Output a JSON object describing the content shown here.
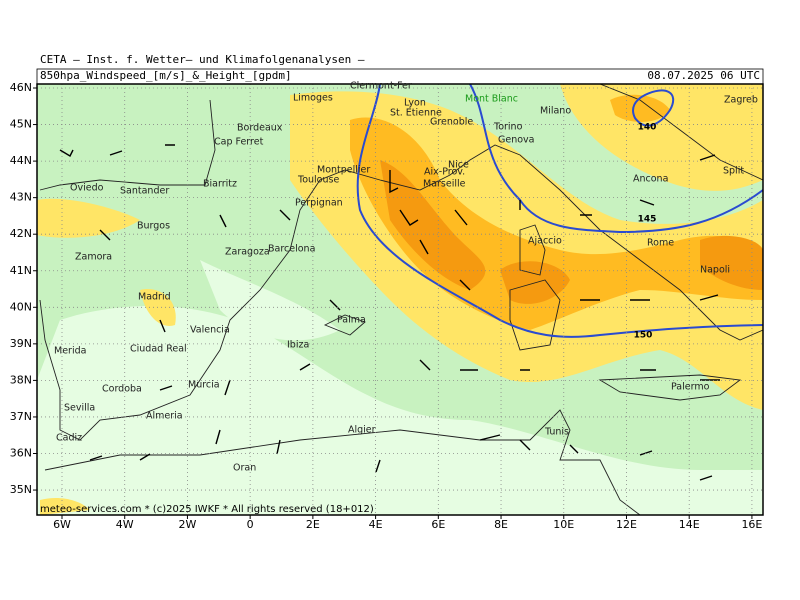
{
  "header": {
    "institute": "CETA – Inst. f. Wetter– und Klimafolgenanalysen –",
    "product": "850hpa_Windspeed_[m/s]_&_Height_[gpdm]",
    "valid_time": "08.07.2025 06 UTC"
  },
  "map": {
    "lat_ticks": [
      {
        "value": 46,
        "label": "46N"
      },
      {
        "value": 45,
        "label": "45N"
      },
      {
        "value": 44,
        "label": "44N"
      },
      {
        "value": 43,
        "label": "43N"
      },
      {
        "value": 42,
        "label": "42N"
      },
      {
        "value": 41,
        "label": "41N"
      },
      {
        "value": 40,
        "label": "40N"
      },
      {
        "value": 39,
        "label": "39N"
      },
      {
        "value": 38,
        "label": "38N"
      },
      {
        "value": 37,
        "label": "37N"
      },
      {
        "value": 36,
        "label": "36N"
      },
      {
        "value": 35,
        "label": "35N"
      }
    ],
    "lon_ticks": [
      {
        "value": -6,
        "label": "6W"
      },
      {
        "value": -4,
        "label": "4W"
      },
      {
        "value": -2,
        "label": "2W"
      },
      0,
      {
        "value": 2,
        "label": "2E"
      },
      {
        "value": 4,
        "label": "4E"
      },
      {
        "value": 6,
        "label": "6E"
      },
      {
        "value": 8,
        "label": "8E"
      },
      {
        "value": 10,
        "label": "10E"
      },
      {
        "value": 12,
        "label": "12E"
      },
      {
        "value": 14,
        "label": "14E"
      },
      {
        "value": 16,
        "label": "16E"
      }
    ],
    "cities": [
      "Limoges",
      "Clermont-Fer",
      "Lyon",
      "St. Etienne",
      "Mont Blanc",
      "Grenoble",
      "Milano",
      "Torino",
      "Genova",
      "Bordeaux",
      "Cap Ferret",
      "Montpellier",
      "Toulouse",
      "Nice",
      "Aix-Prov.",
      "Marseille",
      "Biarritz",
      "Oviedo",
      "Santander",
      "Perpignan",
      "Burgos",
      "Zaragoza",
      "Barcelona",
      "Zamora",
      "Ajaccio",
      "Rome",
      "Napoli",
      "Ancona",
      "Split",
      "Zagreb",
      "Madrid",
      "Valencia",
      "Palma",
      "Ibiza",
      "Merida",
      "Ciudad Real",
      "Murcia",
      "Cordoba",
      "Sevilla",
      "Almeria",
      "Palermo",
      "Cadiz",
      "Algier",
      "Tunis",
      "Oran"
    ],
    "contour_labels": [
      140,
      145,
      150
    ]
  },
  "footer": "meteo-services.com * (c)2025 IWKF * All rights reserved (18+012)"
}
